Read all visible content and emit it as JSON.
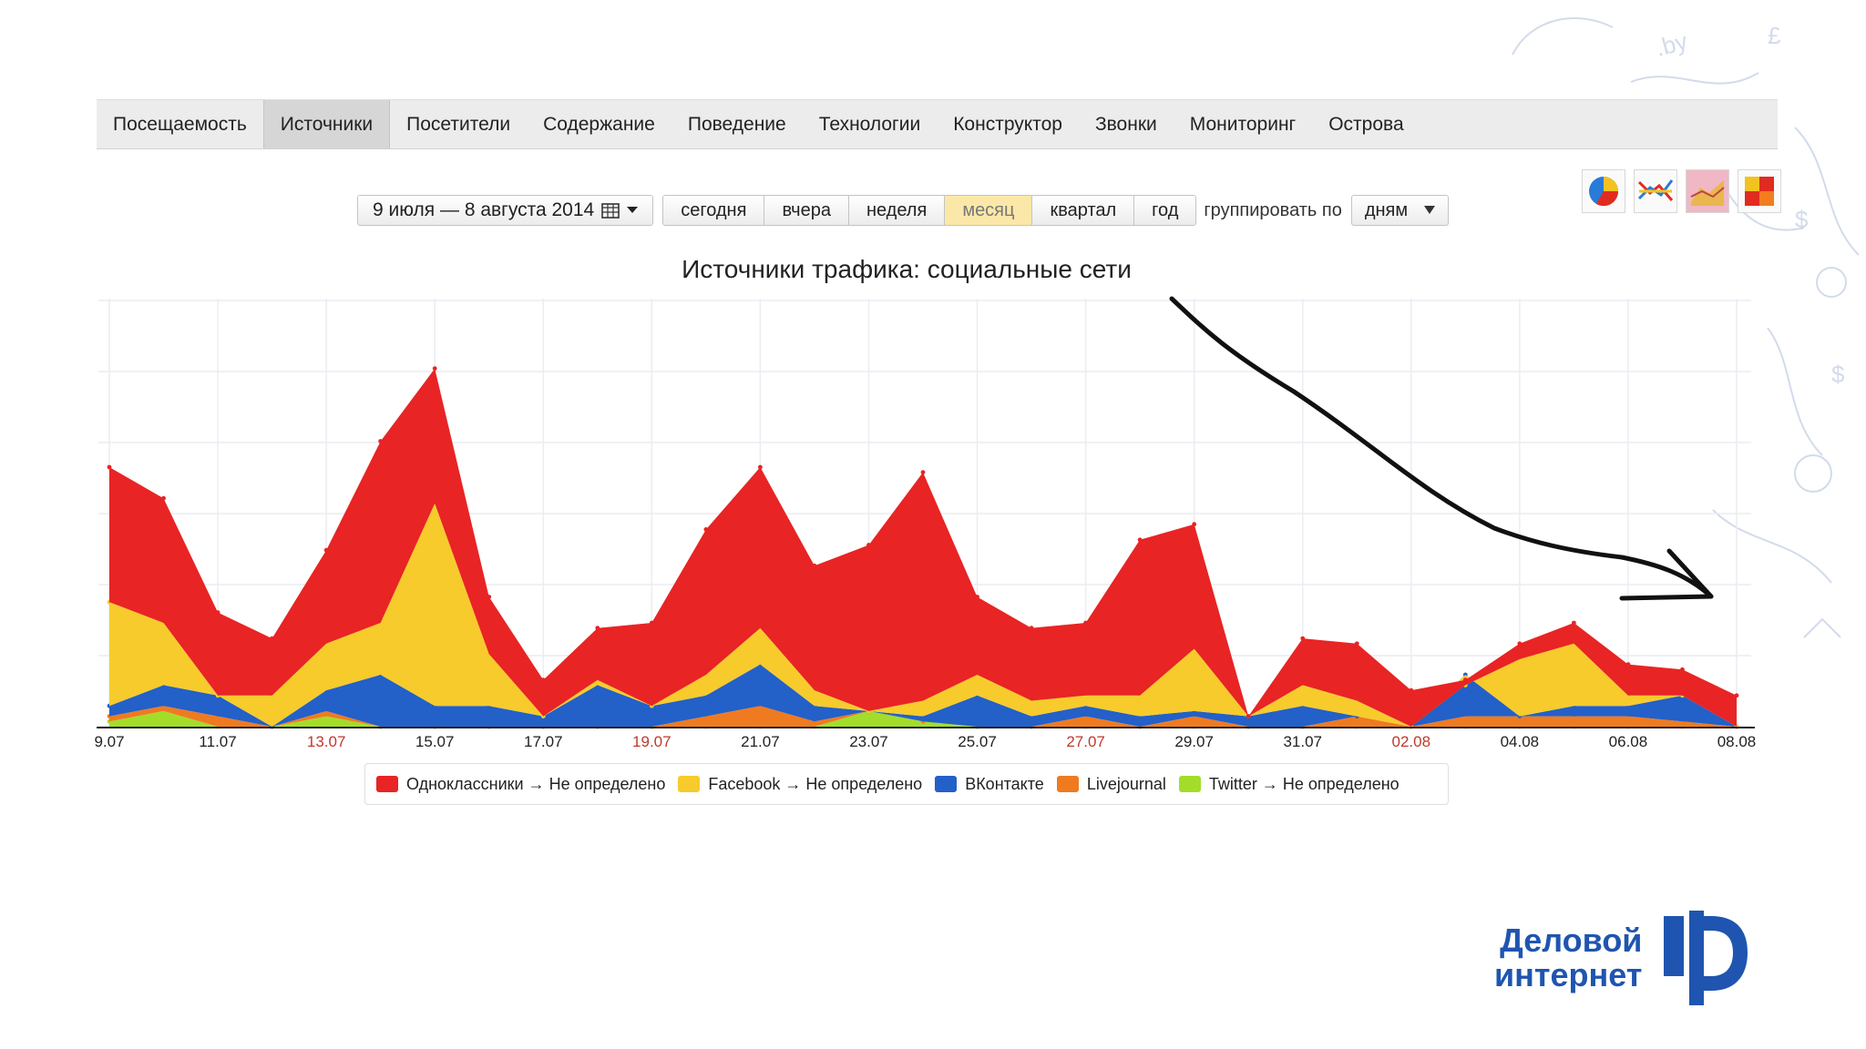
{
  "nav": {
    "items": [
      {
        "label": "Посещаемость",
        "active": false
      },
      {
        "label": "Источники",
        "active": true
      },
      {
        "label": "Посетители",
        "active": false
      },
      {
        "label": "Содержание",
        "active": false
      },
      {
        "label": "Поведение",
        "active": false
      },
      {
        "label": "Технологии",
        "active": false
      },
      {
        "label": "Конструктор",
        "active": false
      },
      {
        "label": "Звонки",
        "active": false
      },
      {
        "label": "Мониторинг",
        "active": false
      },
      {
        "label": "Острова",
        "active": false
      }
    ]
  },
  "controls": {
    "date_range": "9 июля — 8 августа 2014",
    "periods": [
      {
        "label": "сегодня",
        "active": false
      },
      {
        "label": "вчера",
        "active": false
      },
      {
        "label": "неделя",
        "active": false
      },
      {
        "label": "месяц",
        "active": true
      },
      {
        "label": "квартал",
        "active": false
      },
      {
        "label": "год",
        "active": false
      }
    ],
    "group_label": "группировать по",
    "group_value": "дням"
  },
  "view_icons": [
    "pie-chart-icon",
    "line-chart-icon",
    "area-chart-icon",
    "heatmap-icon"
  ],
  "brand": {
    "line1": "Деловой",
    "line2": "интернет",
    "color": "#1f55b0"
  },
  "chart_data": {
    "type": "area",
    "stacked": true,
    "title": "Источники трафика: социальные сети",
    "x": [
      "9.07",
      "10.07",
      "11.07",
      "12.07",
      "13.07",
      "14.07",
      "15.07",
      "16.07",
      "17.07",
      "18.07",
      "19.07",
      "20.07",
      "21.07",
      "22.07",
      "23.07",
      "24.07",
      "25.07",
      "26.07",
      "27.07",
      "28.07",
      "29.07",
      "30.07",
      "31.07",
      "01.08",
      "02.08",
      "03.08",
      "04.08",
      "05.08",
      "06.08",
      "07.08",
      "08.08"
    ],
    "x_tick_labels": [
      "9.07",
      "11.07",
      "13.07",
      "15.07",
      "17.07",
      "19.07",
      "21.07",
      "23.07",
      "25.07",
      "27.07",
      "29.07",
      "31.07",
      "02.08",
      "04.08",
      "06.08",
      "08.08"
    ],
    "weekend_tick_labels": [
      "13.07",
      "19.07",
      "27.07",
      "02.08"
    ],
    "weekend_tick_color": "#c0392b",
    "y_axis_labels_shown": false,
    "grid": true,
    "legend_position": "bottom",
    "series": [
      {
        "name": "Twitter → Не определено",
        "color": "#a3dd2a",
        "values": [
          1,
          3,
          0,
          0,
          2,
          0,
          0,
          0,
          0,
          0,
          0,
          0,
          0,
          0,
          3,
          1,
          0,
          0,
          0,
          0,
          0,
          0,
          0,
          0,
          0,
          0,
          0,
          0,
          0,
          0,
          0
        ]
      },
      {
        "name": "Livejournal",
        "color": "#f07a1f",
        "values": [
          1,
          1,
          2,
          0,
          1,
          0,
          0,
          0,
          0,
          0,
          0,
          2,
          4,
          1,
          0,
          0,
          0,
          0,
          2,
          0,
          2,
          0,
          0,
          2,
          0,
          2,
          2,
          2,
          2,
          1,
          0
        ]
      },
      {
        "name": "ВКонтакте",
        "color": "#2360c8",
        "values": [
          2,
          4,
          4,
          0,
          4,
          10,
          4,
          4,
          2,
          8,
          4,
          4,
          8,
          3,
          0,
          1,
          6,
          2,
          2,
          2,
          1,
          2,
          4,
          0,
          0,
          8,
          0,
          2,
          2,
          5,
          0
        ]
      },
      {
        "name": "Facebook → Не определено",
        "color": "#f7cb2c",
        "values": [
          20,
          12,
          0,
          6,
          9,
          10,
          39,
          10,
          0,
          1,
          0,
          4,
          7,
          3,
          0,
          3,
          4,
          3,
          2,
          4,
          12,
          0,
          4,
          3,
          0,
          -2,
          11,
          12,
          2,
          0,
          0
        ]
      },
      {
        "name": "Одноклассники → Не определено",
        "color": "#e82424",
        "values": [
          26,
          24,
          16,
          11,
          18,
          35,
          26,
          11,
          7,
          10,
          16,
          28,
          31,
          24,
          32,
          44,
          15,
          14,
          14,
          30,
          24,
          0,
          9,
          11,
          7,
          1,
          3,
          4,
          6,
          5,
          6
        ]
      }
    ],
    "annotation_arrow": "downward trend arrow, hand-drawn, black"
  }
}
